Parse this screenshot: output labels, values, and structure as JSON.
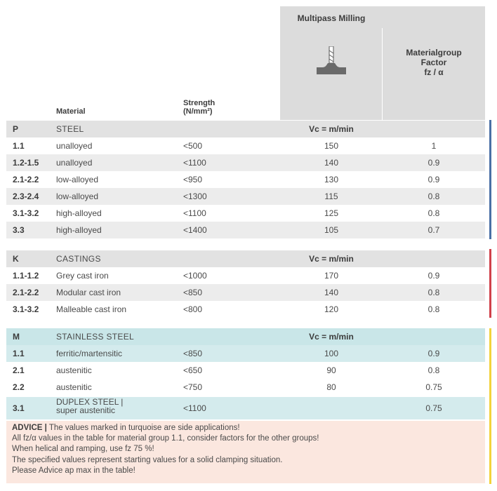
{
  "header": {
    "multipass_title": "Multipass Milling",
    "factor_title_lines": [
      "Materialgroup",
      "Factor",
      "fz / α"
    ],
    "col_material": "Material",
    "col_strength_lines": [
      "Strength",
      "(N/mm²)"
    ],
    "icon": "milling-cutter-icon"
  },
  "groups": [
    {
      "code": "P",
      "name": "STEEL",
      "unit": "Vc = m/min",
      "bar_color": "#4a6fa5",
      "rows": [
        {
          "code": "1.1",
          "material": "unalloyed",
          "strength": "<500",
          "vc": "150",
          "factor": "1"
        },
        {
          "code": "1.2-1.5",
          "material": "unalloyed",
          "strength": "<1100",
          "vc": "140",
          "factor": "0.9"
        },
        {
          "code": "2.1-2.2",
          "material": "low-alloyed",
          "strength": "<950",
          "vc": "130",
          "factor": "0.9"
        },
        {
          "code": "2.3-2.4",
          "material": "low-alloyed",
          "strength": "<1300",
          "vc": "115",
          "factor": "0.8"
        },
        {
          "code": "3.1-3.2",
          "material": "high-alloyed",
          "strength": "<1100",
          "vc": "125",
          "factor": "0.8"
        },
        {
          "code": "3.3",
          "material": "high-alloyed",
          "strength": "<1400",
          "vc": "105",
          "factor": "0.7"
        }
      ]
    },
    {
      "code": "K",
      "name": "CASTINGS",
      "unit": "Vc = m/min",
      "bar_color": "#d0404a",
      "rows": [
        {
          "code": "1.1-1.2",
          "material": "Grey cast iron",
          "strength": "<1000",
          "vc": "170",
          "factor": "0.9"
        },
        {
          "code": "2.1-2.2",
          "material": "Modular cast iron",
          "strength": "<850",
          "vc": "140",
          "factor": "0.8"
        },
        {
          "code": "3.1-3.2",
          "material": "Malleable cast iron",
          "strength": "<800",
          "vc": "120",
          "factor": "0.8"
        }
      ]
    },
    {
      "code": "M",
      "name": "STAINLESS STEEL",
      "unit": "Vc = m/min",
      "bar_color": "#f2d23a",
      "rows": [
        {
          "code": "1.1",
          "material": "ferritic/martensitic",
          "strength": "<850",
          "vc": "100",
          "factor": "0.9"
        },
        {
          "code": "2.1",
          "material": "austenitic",
          "strength": "<650",
          "vc": "90",
          "factor": "0.8"
        },
        {
          "code": "2.2",
          "material": "austenitic",
          "strength": "<750",
          "vc": "80",
          "factor": "0.75"
        },
        {
          "code": "3.1",
          "material_lines": [
            "DUPLEX STEEL |",
            "super austenitic"
          ],
          "strength": "<1100",
          "vc": "",
          "factor": "0.75"
        }
      ]
    }
  ],
  "advice": {
    "label": "ADVICE",
    "separator": "|",
    "lines": [
      "The values marked in turquoise are side applications!",
      "All fz/α values in the table for material group 1.1, consider factors for the other groups!",
      "When helical and ramping, use fz 75 %!",
      "The specified values represent starting values for a solid clamping situation.",
      "Please Advice ap max in the table!"
    ]
  }
}
